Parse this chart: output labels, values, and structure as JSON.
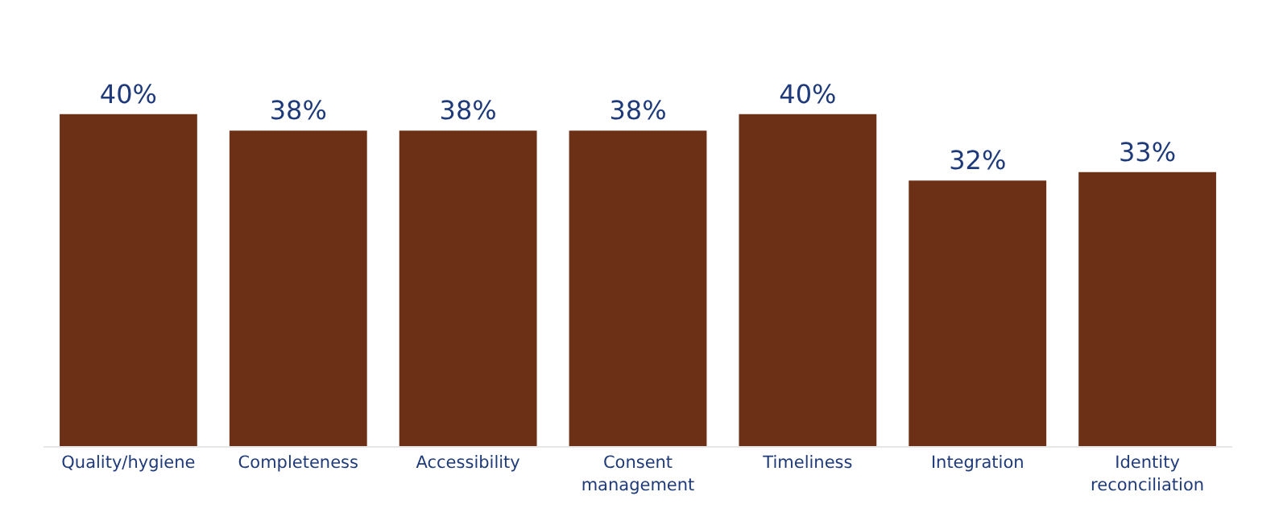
{
  "chart_data": {
    "type": "bar",
    "categories": [
      "Quality/hygiene",
      "Completeness",
      "Accessibility",
      "Consent management",
      "Timeliness",
      "Integration",
      "Identity reconciliation"
    ],
    "values": [
      40,
      38,
      38,
      38,
      40,
      32,
      33
    ],
    "color": "#6b3015",
    "data_labels": true,
    "value_labels": [
      "40%",
      "38%",
      "38%",
      "38%",
      "40%",
      "32%",
      "33%"
    ],
    "grid": false,
    "legend": false,
    "tick_labels": "x"
  }
}
